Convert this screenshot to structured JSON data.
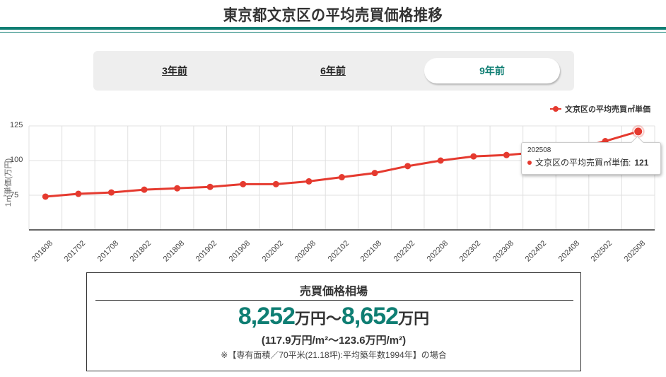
{
  "header": {
    "title": "東京都文京区の平均売買価格推移"
  },
  "period_tabs": [
    {
      "label": "3年前",
      "active": false
    },
    {
      "label": "6年前",
      "active": false
    },
    {
      "label": "9年前",
      "active": true
    }
  ],
  "colors": {
    "accent": "#0f7e73",
    "series": "#e53a2f",
    "grid": "#e0e0e0"
  },
  "chart": {
    "legend": "文京区の平均売買㎡単価",
    "ylabel": "1㎡単価(万円)",
    "yticks": [
      "125",
      "100",
      "75"
    ],
    "tooltip": {
      "date": "202508",
      "series": "文京区の平均売買㎡単価:",
      "value": "121"
    }
  },
  "chart_data": {
    "type": "line",
    "title": "東京都文京区の平均売買価格推移",
    "xlabel": "",
    "ylabel": "1㎡単価(万円)",
    "ylim": [
      50,
      125
    ],
    "yticks": [
      75,
      100,
      125
    ],
    "grid": true,
    "legend_position": "top-right",
    "categories": [
      "201608",
      "201702",
      "201708",
      "201802",
      "201808",
      "201902",
      "201908",
      "202002",
      "202008",
      "202102",
      "202108",
      "202202",
      "202208",
      "202302",
      "202308",
      "202402",
      "202408",
      "202502",
      "202508"
    ],
    "series": [
      {
        "name": "文京区の平均売買㎡単価",
        "values": [
          74,
          76,
          77,
          79,
          80,
          81,
          83,
          83,
          85,
          88,
          91,
          96,
          100,
          103,
          104,
          106,
          108,
          114,
          121
        ]
      }
    ],
    "annotations": [
      {
        "type": "tooltip",
        "x": "202508",
        "text": "文京区の平均売買㎡単価: 121"
      }
    ]
  },
  "price_box": {
    "title": "売買価格相場",
    "low": "8,252",
    "high": "8,652",
    "unit": "万円",
    "sep": "〜",
    "per_sqm": "(117.9万円/m²〜123.6万円/m²)",
    "note": "※【専有面積／70平米(21.18坪):平均築年数1994年】の場合"
  }
}
